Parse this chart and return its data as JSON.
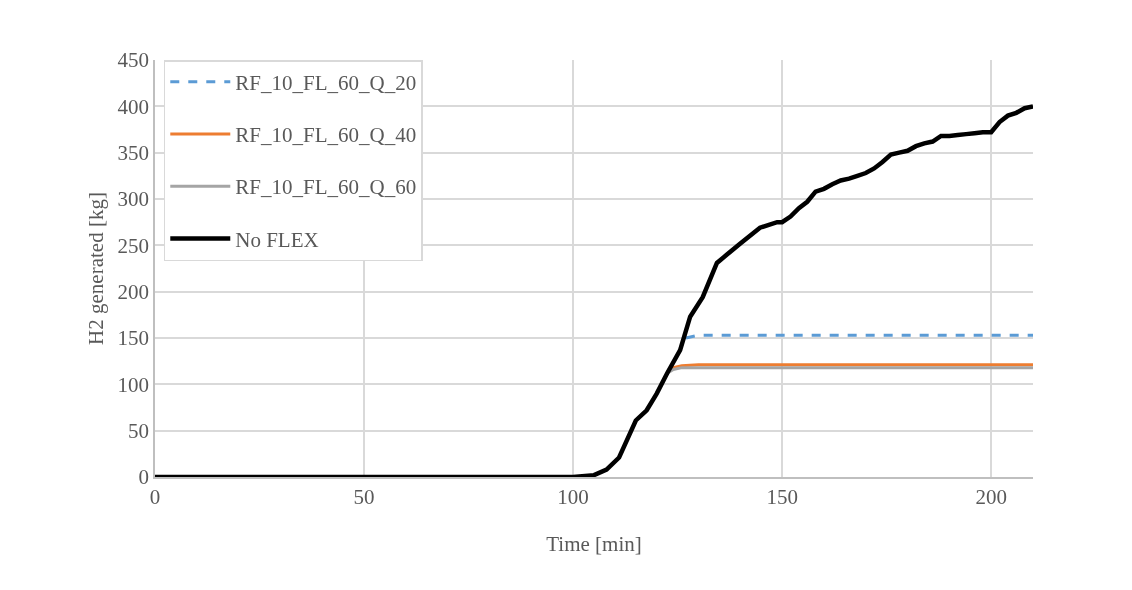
{
  "chart_data": {
    "type": "line",
    "xlabel": "Time [min]",
    "ylabel": "H2 generated [kg]",
    "xlim": [
      0,
      210
    ],
    "xticks": [
      0,
      50,
      100,
      150,
      200
    ],
    "ylim": [
      0,
      450
    ],
    "yticks": [
      0,
      50,
      100,
      150,
      200,
      250,
      300,
      350,
      400,
      450
    ],
    "grid": true,
    "legend": "top left",
    "marker": "none",
    "series": [
      {
        "name": "RF_10_FL_60_Q_20",
        "color": "#5b9bd5",
        "line_style": "dashed",
        "x": [
          127,
          130,
          210
        ],
        "values": [
          150,
          153,
          153
        ]
      },
      {
        "name": "RF_10_FL_60_Q_40",
        "color": "#ed7d31",
        "line_style": "solid",
        "x": [
          122.5,
          124,
          126,
          130,
          210
        ],
        "values": [
          112,
          118,
          120,
          121,
          121
        ]
      },
      {
        "name": "RF_10_FL_60_Q_60",
        "color": "#a5a5a5",
        "line_style": "solid",
        "x": [
          122.5,
          124,
          126,
          130,
          210
        ],
        "values": [
          112,
          116,
          118,
          118,
          118
        ]
      },
      {
        "name": "No FLEX",
        "color": "#000000",
        "line_style": "solid",
        "x": [
          0,
          100,
          105,
          108,
          111,
          115,
          117.6,
          120,
          122.5,
          125.6,
          128,
          131,
          134.4,
          136.8,
          140,
          144.7,
          148.8,
          150,
          152,
          154,
          156,
          158,
          160,
          162,
          164,
          166,
          168,
          170,
          172,
          174,
          176,
          178,
          180,
          182,
          184,
          186,
          188,
          190,
          192,
          194,
          196,
          198,
          200,
          202,
          204,
          206,
          208,
          210
        ],
        "values": [
          0,
          0,
          2,
          8,
          21,
          61,
          72,
          90,
          112,
          137,
          173,
          194,
          231,
          240,
          252,
          269,
          275,
          275,
          281,
          290,
          297,
          308,
          311,
          316,
          320,
          322,
          325,
          328,
          333,
          340,
          348,
          350,
          352,
          357,
          360,
          362,
          368,
          368,
          369,
          370,
          371,
          372,
          372,
          383,
          390,
          393,
          398,
          400
        ]
      }
    ]
  }
}
